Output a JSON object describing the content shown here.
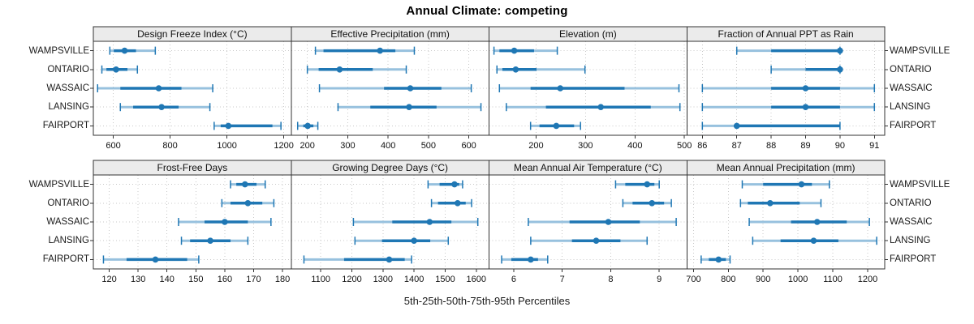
{
  "title": "Annual Climate: competing",
  "chart_data": {
    "type": "dotplot",
    "subtype": "five-number-percentile-range-plot",
    "title": "Annual Climate: competing",
    "xlabel": "5th-25th-50th-75th-95th Percentiles",
    "percentiles": [
      5,
      25,
      50,
      75,
      95
    ],
    "sites": [
      "WAMPSVILLE",
      "ONTARIO",
      "WASSAIC",
      "LANSING",
      "FAIRPORT"
    ],
    "layout": {
      "rows": 2,
      "cols": 4,
      "grid": "dotted",
      "legend": "none",
      "site_labels": "both-sides"
    },
    "colors": {
      "point": "#1f77b4",
      "range_light": "#97c1de",
      "grid": "#c8c8c8",
      "strip_bg": "#ebebeb",
      "border": "#333333",
      "text": "#111111"
    },
    "panels": [
      {
        "row": 0,
        "col": 0,
        "label": "Design Freeze Index (°C)",
        "xlim": [
          530,
          1226
        ],
        "ticks": [
          600,
          800,
          1000,
          1200
        ],
        "series": [
          {
            "site": "WAMPSVILLE",
            "p": [
              588,
              602,
              640,
              680,
              748
            ]
          },
          {
            "site": "ONTARIO",
            "p": [
              560,
              576,
              610,
              650,
              685
            ]
          },
          {
            "site": "WASSAIC",
            "p": [
              545,
              625,
              760,
              840,
              950
            ]
          },
          {
            "site": "LANSING",
            "p": [
              625,
              670,
              770,
              830,
              940
            ]
          },
          {
            "site": "FAIRPORT",
            "p": [
              955,
              978,
              1005,
              1160,
              1190
            ]
          }
        ]
      },
      {
        "row": 0,
        "col": 1,
        "label": "Effective Precipitation (mm)",
        "xlim": [
          160,
          650
        ],
        "ticks": [
          200,
          300,
          400,
          500,
          600
        ],
        "series": [
          {
            "site": "WAMPSVILLE",
            "p": [
              220,
              240,
              380,
              418,
              465
            ]
          },
          {
            "site": "ONTARIO",
            "p": [
              200,
              228,
              280,
              362,
              445
            ]
          },
          {
            "site": "WASSAIC",
            "p": [
              230,
              390,
              455,
              532,
              606
            ]
          },
          {
            "site": "LANSING",
            "p": [
              276,
              356,
              452,
              520,
              630
            ]
          },
          {
            "site": "FAIRPORT",
            "p": [
              176,
              190,
              201,
              215,
              226
            ]
          }
        ]
      },
      {
        "row": 0,
        "col": 2,
        "label": "Elevation (m)",
        "xlim": [
          105,
          505
        ],
        "ticks": [
          200,
          300,
          400,
          500
        ],
        "series": [
          {
            "site": "WAMPSVILLE",
            "p": [
              115,
              126,
              156,
              196,
              243
            ]
          },
          {
            "site": "ONTARIO",
            "p": [
              121,
              132,
              159,
              201,
              299
            ]
          },
          {
            "site": "WASSAIC",
            "p": [
              126,
              189,
              249,
              379,
              489
            ]
          },
          {
            "site": "LANSING",
            "p": [
              140,
              220,
              331,
              432,
              491
            ]
          },
          {
            "site": "FAIRPORT",
            "p": [
              189,
              207,
              241,
              277,
              290
            ]
          }
        ]
      },
      {
        "row": 0,
        "col": 3,
        "label": "Fraction of Annual PPT as Rain",
        "xlim": [
          85.55,
          91.3
        ],
        "ticks": [
          86,
          87,
          88,
          89,
          90,
          91
        ],
        "series": [
          {
            "site": "WAMPSVILLE",
            "p": [
              87,
              88,
              90,
              90,
              90
            ]
          },
          {
            "site": "ONTARIO",
            "p": [
              88,
              89,
              90,
              90,
              90
            ]
          },
          {
            "site": "WASSAIC",
            "p": [
              86,
              88,
              89,
              90,
              91
            ]
          },
          {
            "site": "LANSING",
            "p": [
              86,
              88,
              89,
              90,
              91
            ]
          },
          {
            "site": "FAIRPORT",
            "p": [
              86,
              87,
              87,
              90,
              90
            ]
          }
        ]
      },
      {
        "row": 1,
        "col": 0,
        "label": "Frost-Free Days",
        "xlim": [
          114.5,
          183
        ],
        "ticks": [
          120,
          130,
          140,
          150,
          160,
          170,
          180
        ],
        "series": [
          {
            "site": "WAMPSVILLE",
            "p": [
              162,
              164,
              167,
              171,
              174
            ]
          },
          {
            "site": "ONTARIO",
            "p": [
              159,
              162,
              168,
              173,
              177
            ]
          },
          {
            "site": "WASSAIC",
            "p": [
              144,
              153,
              160,
              168,
              176
            ]
          },
          {
            "site": "LANSING",
            "p": [
              145,
              148,
              155,
              162,
              168
            ]
          },
          {
            "site": "FAIRPORT",
            "p": [
              118,
              126,
              136,
              147,
              151
            ]
          }
        ]
      },
      {
        "row": 1,
        "col": 1,
        "label": "Growing Degree Days (°C)",
        "xlim": [
          1005,
          1641
        ],
        "ticks": [
          1100,
          1200,
          1300,
          1400,
          1500,
          1600
        ],
        "series": [
          {
            "site": "WAMPSVILLE",
            "p": [
              1445,
              1482,
              1530,
              1545,
              1556
            ]
          },
          {
            "site": "ONTARIO",
            "p": [
              1456,
              1477,
              1540,
              1566,
              1585
            ]
          },
          {
            "site": "WASSAIC",
            "p": [
              1205,
              1330,
              1450,
              1520,
              1605
            ]
          },
          {
            "site": "LANSING",
            "p": [
              1210,
              1297,
              1400,
              1452,
              1510
            ]
          },
          {
            "site": "FAIRPORT",
            "p": [
              1046,
              1175,
              1320,
              1370,
              1392
            ]
          }
        ]
      },
      {
        "row": 1,
        "col": 2,
        "label": "Mean Annual Air Temperature (°C)",
        "xlim": [
          5.49,
          9.57
        ],
        "ticks": [
          6,
          7,
          8,
          9
        ],
        "series": [
          {
            "site": "WAMPSVILLE",
            "p": [
              8.1,
              8.3,
              8.75,
              8.9,
              9.0
            ]
          },
          {
            "site": "ONTARIO",
            "p": [
              8.25,
              8.45,
              8.85,
              9.1,
              9.25
            ]
          },
          {
            "site": "WASSAIC",
            "p": [
              6.3,
              7.15,
              7.95,
              8.6,
              9.35
            ]
          },
          {
            "site": "LANSING",
            "p": [
              6.35,
              7.2,
              7.7,
              8.2,
              8.75
            ]
          },
          {
            "site": "FAIRPORT",
            "p": [
              5.75,
              5.95,
              6.35,
              6.5,
              6.7
            ]
          }
        ]
      },
      {
        "row": 1,
        "col": 3,
        "label": "Mean Annual Precipitation (mm)",
        "xlim": [
          681,
          1249
        ],
        "ticks": [
          700,
          800,
          900,
          1000,
          1100,
          1200
        ],
        "series": [
          {
            "site": "WAMPSVILLE",
            "p": [
              840,
              900,
              1010,
              1040,
              1090
            ]
          },
          {
            "site": "ONTARIO",
            "p": [
              835,
              856,
              920,
              1005,
              1066
            ]
          },
          {
            "site": "WASSAIC",
            "p": [
              860,
              980,
              1055,
              1140,
              1205
            ]
          },
          {
            "site": "LANSING",
            "p": [
              870,
              950,
              1045,
              1116,
              1226
            ]
          },
          {
            "site": "FAIRPORT",
            "p": [
              722,
              744,
              772,
              793,
              805
            ]
          }
        ]
      }
    ]
  }
}
